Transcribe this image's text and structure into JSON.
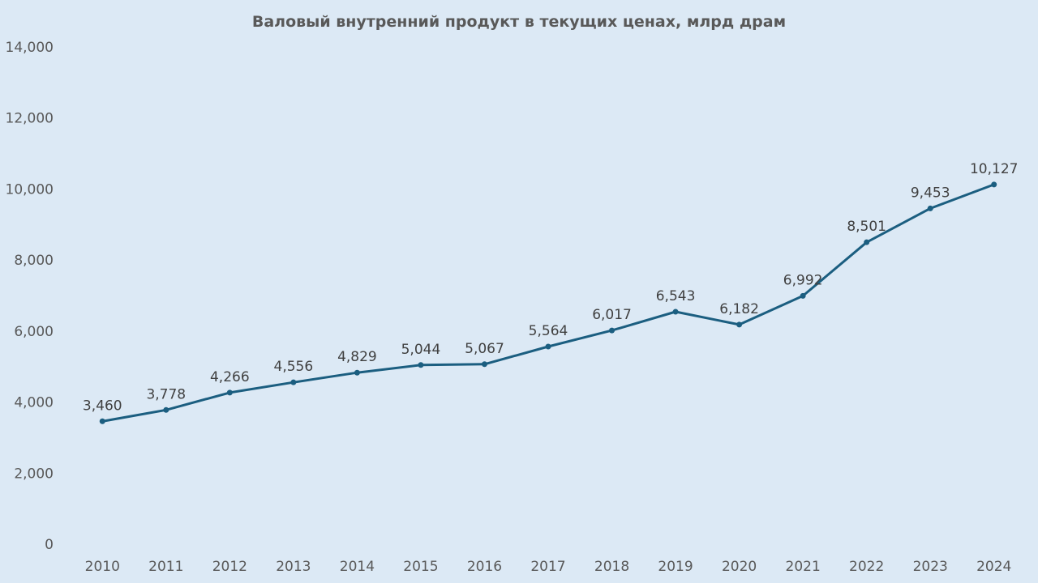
{
  "chart_data": {
    "type": "line",
    "title": "Валовый внутренний продукт в текущих ценах, млрд драм",
    "xlabel": "",
    "ylabel": "",
    "categories": [
      "2010",
      "2011",
      "2012",
      "2013",
      "2014",
      "2015",
      "2016",
      "2017",
      "2018",
      "2019",
      "2020",
      "2021",
      "2022",
      "2023",
      "2024"
    ],
    "series": [
      {
        "values": [
          3460,
          3778,
          4266,
          4556,
          4829,
          5044,
          5067,
          5564,
          6017,
          6543,
          6182,
          6992,
          8501,
          9453,
          10127
        ]
      }
    ],
    "data_labels": [
      "3,460",
      "3,778",
      "4,266",
      "4,556",
      "4,829",
      "5,044",
      "5,067",
      "5,564",
      "6,017",
      "6,543",
      "6,182",
      "6,992",
      "8,501",
      "9,453",
      "10,127"
    ],
    "highlight_last_label": true,
    "ylim": [
      0,
      14000
    ],
    "y_ticks": [
      {
        "value": 0,
        "label": "0"
      },
      {
        "value": 2000,
        "label": "2,000"
      },
      {
        "value": 4000,
        "label": "4,000"
      },
      {
        "value": 6000,
        "label": "6,000"
      },
      {
        "value": 8000,
        "label": "8,000"
      },
      {
        "value": 10000,
        "label": "10,000"
      },
      {
        "value": 12000,
        "label": "12,000"
      },
      {
        "value": 14000,
        "label": "14,000"
      }
    ],
    "grid": false,
    "legend": "none",
    "colors": {
      "background": "#dce9f5",
      "line": "#1b5e80",
      "marker": "#1b5e80",
      "highlight_label": "#e8141c",
      "label_text": "#404040",
      "axis_text": "#595959"
    }
  }
}
